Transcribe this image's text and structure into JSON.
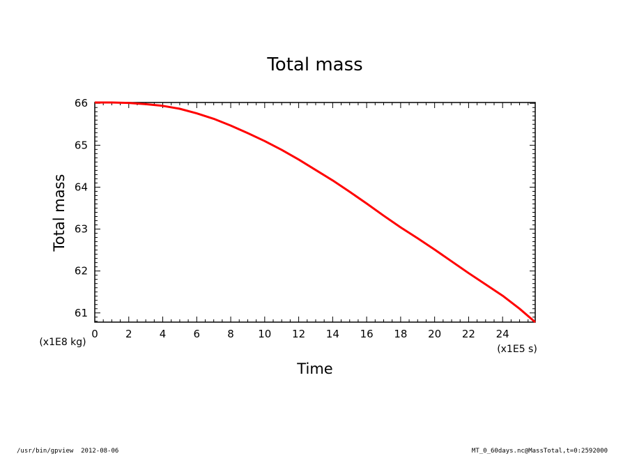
{
  "footer": {
    "left": "/usr/bin/gpview  2012-08-06",
    "right": "MT_0_60days.nc@MassTotal,t=0:2592000"
  },
  "chart_data": {
    "type": "line",
    "title": "Total mass",
    "xlabel": "Time",
    "ylabel": "Total mass",
    "x_unit_label": "(x1E5 s)",
    "y_unit_label": "(x1E8 kg)",
    "xlim": [
      0,
      25.92
    ],
    "ylim": [
      60.78,
      66.02
    ],
    "x_ticks": [
      0,
      2,
      4,
      6,
      8,
      10,
      12,
      14,
      16,
      18,
      20,
      22,
      24
    ],
    "y_ticks": [
      61,
      62,
      63,
      64,
      65,
      66
    ],
    "x_tick_labels": [
      "0",
      "2",
      "4",
      "6",
      "8",
      "10",
      "12",
      "14",
      "16",
      "18",
      "20",
      "22",
      "24"
    ],
    "y_tick_labels": [
      "61",
      "62",
      "63",
      "64",
      "65",
      "66"
    ],
    "grid": false,
    "series": [
      {
        "color": "#ff0000",
        "x": [
          0,
          1,
          2,
          3,
          4,
          5,
          6,
          7,
          8,
          9,
          10,
          11,
          12,
          13,
          14,
          15,
          16,
          17,
          18,
          19,
          20,
          21,
          22,
          23,
          24,
          25,
          25.92
        ],
        "y": [
          66.02,
          66.02,
          66.01,
          65.98,
          65.94,
          65.87,
          65.76,
          65.63,
          65.47,
          65.29,
          65.1,
          64.89,
          64.66,
          64.41,
          64.16,
          63.89,
          63.61,
          63.32,
          63.04,
          62.78,
          62.51,
          62.23,
          61.95,
          61.68,
          61.41,
          61.1,
          60.78
        ]
      }
    ]
  }
}
